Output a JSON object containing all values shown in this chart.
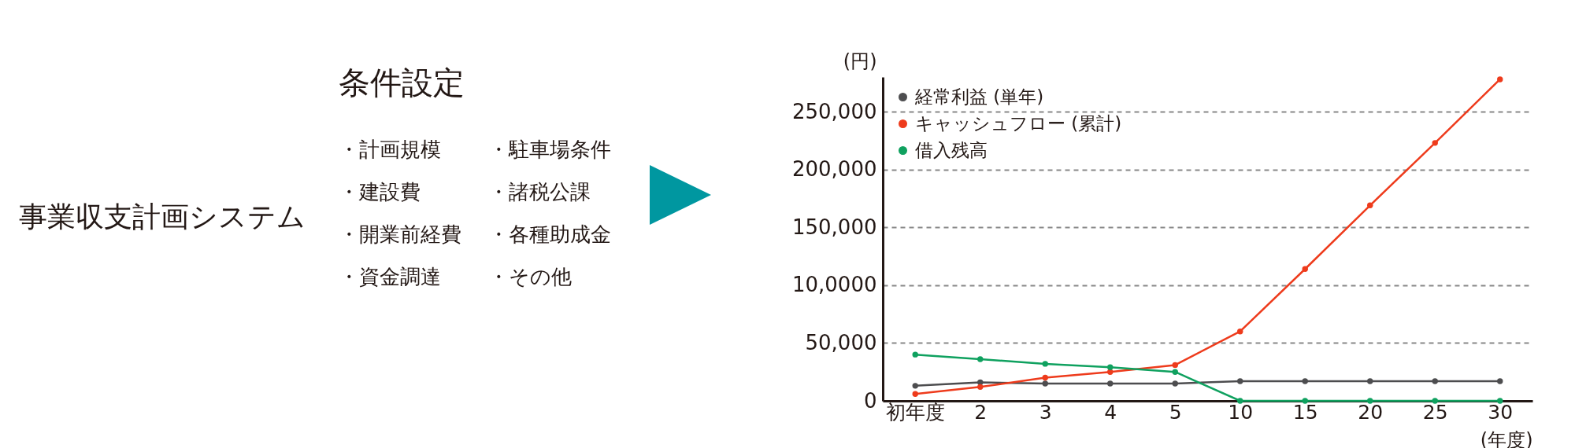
{
  "chart_data": [
    {
      "type": "other",
      "title": "事業収支計画システム",
      "subtitle": "条件設定",
      "annotations": [
        "・計画規模",
        "・駐車場条件",
        "・建設費",
        "・諸税公課",
        "・開業前経費",
        "・各種助成金",
        "・資金調達",
        "・その他"
      ]
    },
    {
      "type": "line",
      "xlabel": "(年度)",
      "ylabel": "(円)",
      "categories": [
        "初年度",
        "2",
        "3",
        "4",
        "5",
        "10",
        "15",
        "20",
        "25",
        "30"
      ],
      "series": [
        {
          "name": "経常利益 (単年)",
          "color": "#4d4d4f",
          "values": [
            13000,
            16000,
            15000,
            15000,
            15000,
            17000,
            17000,
            17000,
            17000,
            17000
          ]
        },
        {
          "name": "キャッシュフロー (累計)",
          "color": "#ee3b1c",
          "values": [
            6000,
            12000,
            20000,
            25000,
            31000,
            60000,
            114000,
            169000,
            223000,
            278000
          ]
        },
        {
          "name": "借入残高",
          "color": "#0fa15f",
          "values": [
            40000,
            36000,
            32000,
            29000,
            25000,
            0,
            0,
            0,
            0,
            0
          ]
        }
      ],
      "ylim": [
        0,
        280000
      ],
      "yticks": [
        0,
        {
          "value": 50000,
          "label": "50,000"
        },
        {
          "value": 100000,
          "label": "10,0000"
        },
        {
          "value": 150000,
          "label": "150,000"
        },
        {
          "value": 200000,
          "label": "200,000"
        },
        {
          "value": 250000,
          "label": "250,000"
        }
      ],
      "grid": "y",
      "legend": "top left",
      "marker": "circle",
      "line_style": "solid"
    }
  ]
}
